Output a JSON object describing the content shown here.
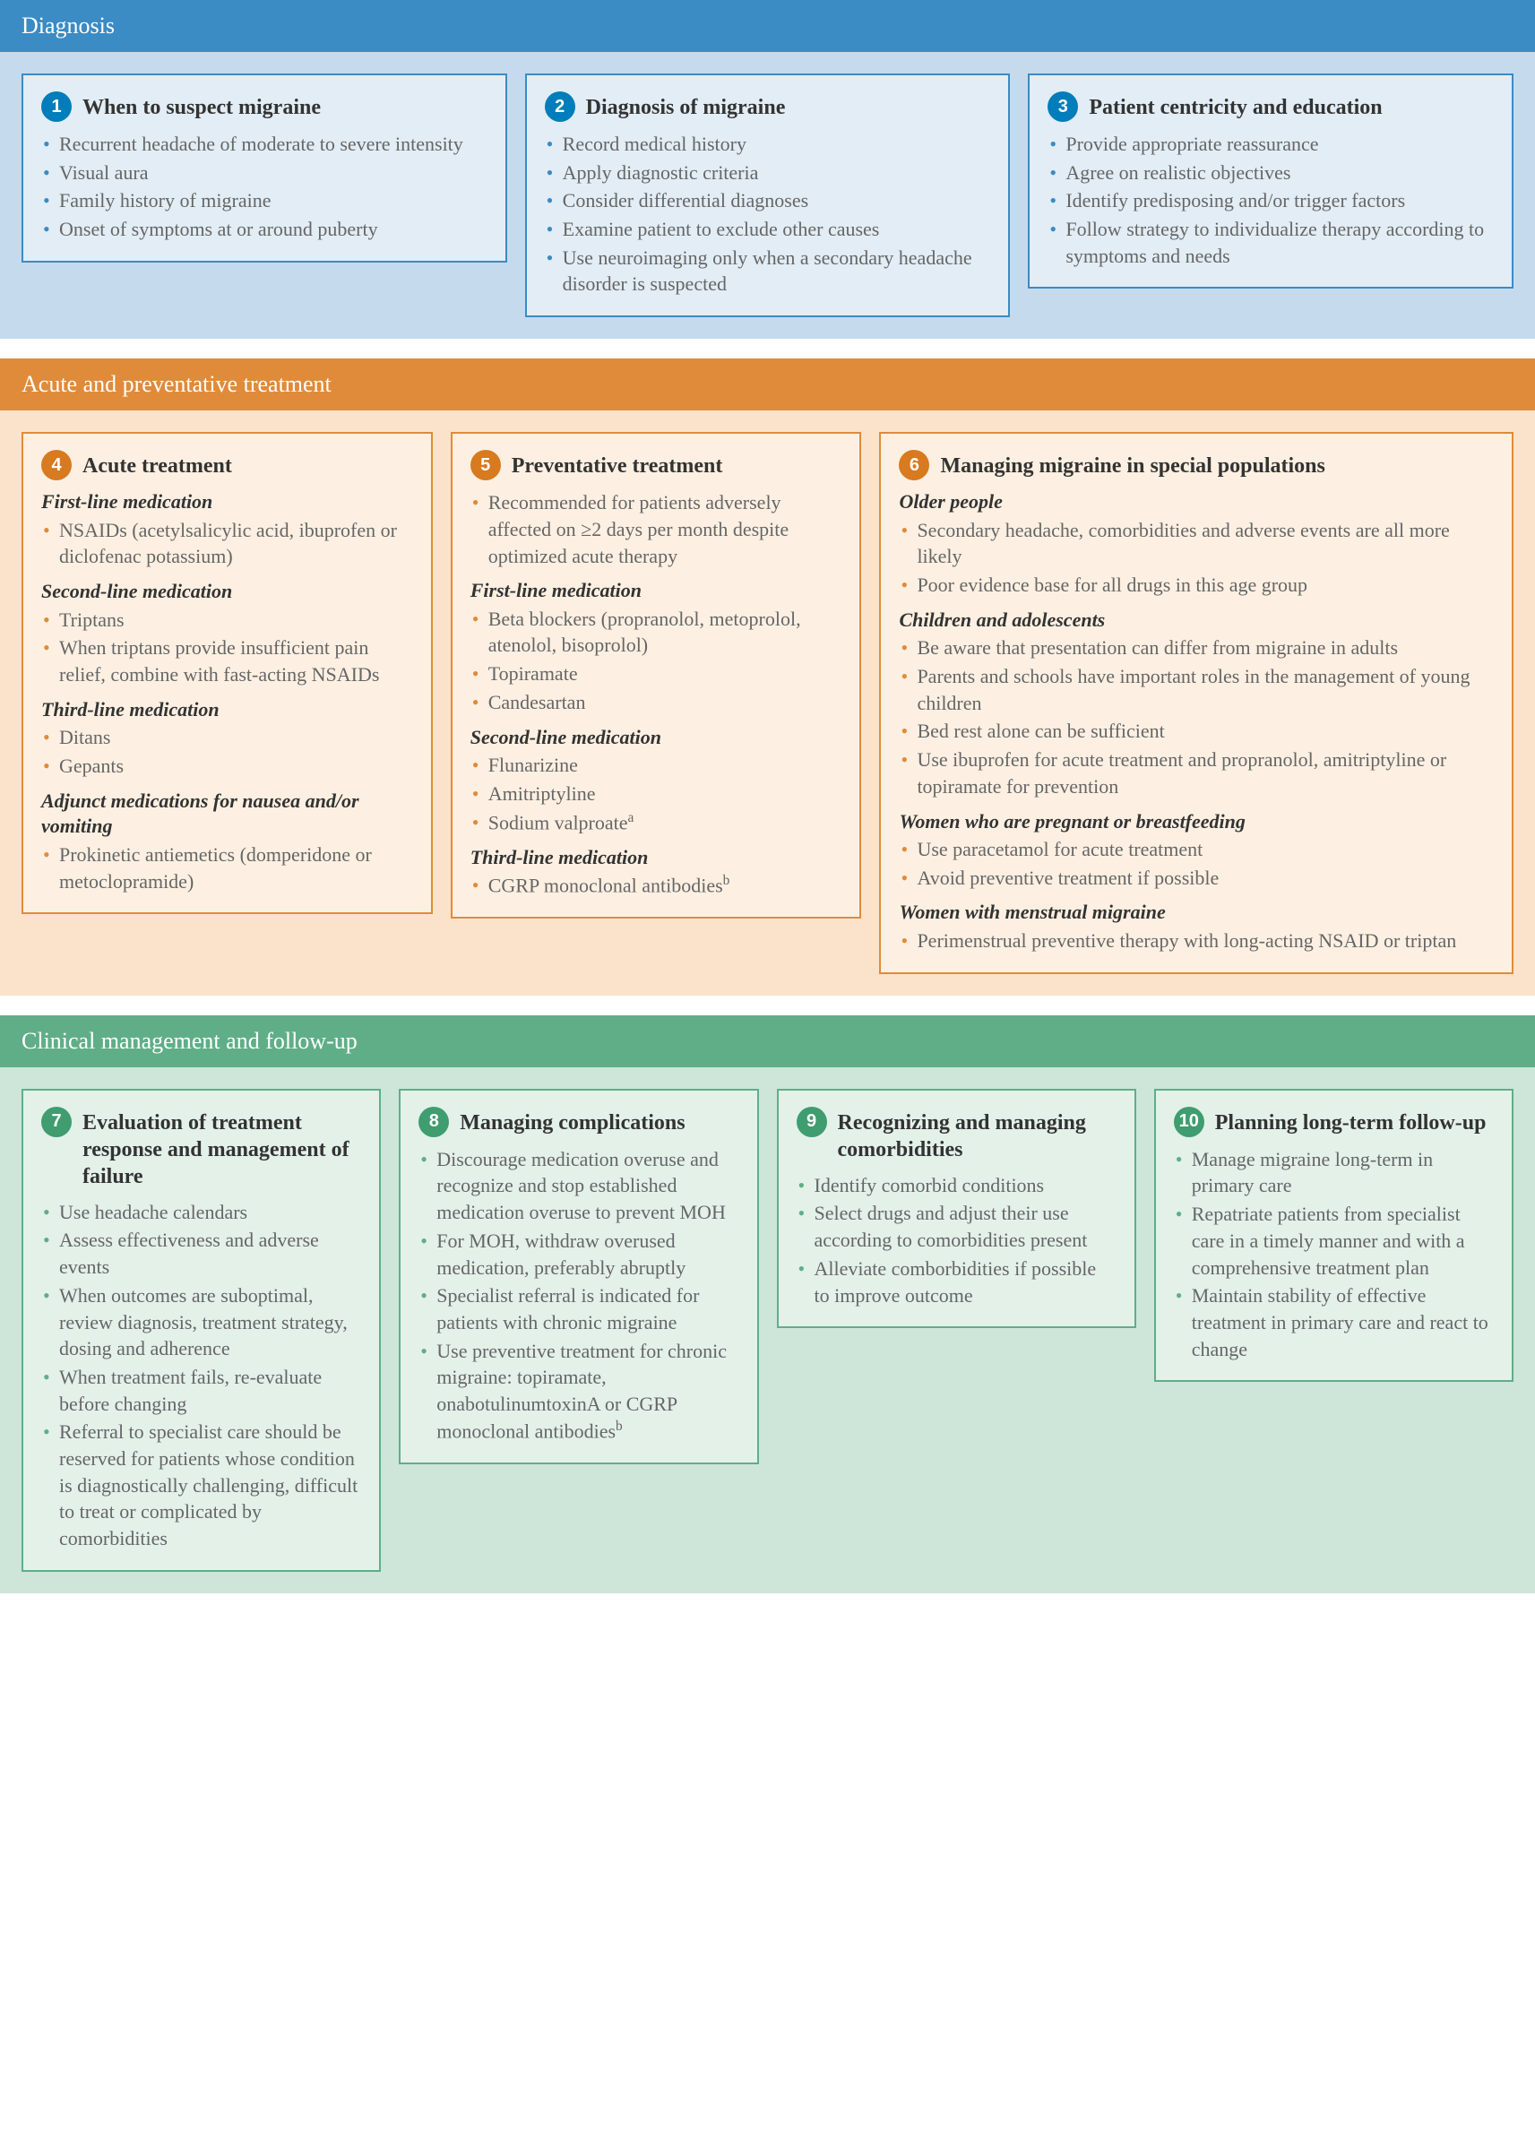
{
  "sections": [
    {
      "title": "Diagnosis",
      "header_bg": "#3b8bc4",
      "body_bg": "#c5dbed",
      "card_border": "#3b8bc4",
      "card_bg": "#e2edf5",
      "badge_bg": "#007dba",
      "bullet_color": "#3b8bc4",
      "cards": [
        {
          "num": "1",
          "title": "When to suspect migraine",
          "groups": [
            {
              "heading": null,
              "items": [
                "Recurrent headache of moderate to severe intensity",
                "Visual aura",
                "Family history of migraine",
                "Onset of symptoms at or around puberty"
              ]
            }
          ]
        },
        {
          "num": "2",
          "title": "Diagnosis of migraine",
          "groups": [
            {
              "heading": null,
              "items": [
                "Record medical history",
                "Apply diagnostic criteria",
                "Consider differential diagnoses",
                "Examine patient to exclude other causes",
                "Use neuroimaging only when a secondary headache disorder is suspected"
              ]
            }
          ]
        },
        {
          "num": "3",
          "title": "Patient centricity and education",
          "groups": [
            {
              "heading": null,
              "items": [
                "Provide appropriate reassurance",
                "Agree on realistic objectives",
                "Identify predisposing and/or trigger factors",
                "Follow strategy to individualize therapy according to symptoms and needs"
              ]
            }
          ]
        }
      ]
    },
    {
      "title": "Acute and preventative treatment",
      "header_bg": "#e08b3a",
      "body_bg": "#fbe3cb",
      "card_border": "#e08b3a",
      "card_bg": "#fdf0e2",
      "badge_bg": "#d87a1f",
      "bullet_color": "#e08b3a",
      "cards": [
        {
          "num": "4",
          "title": "Acute treatment",
          "groups": [
            {
              "heading": "First-line medication",
              "items": [
                "NSAIDs (acetylsalicylic acid, ibuprofen or diclofenac potassium)"
              ]
            },
            {
              "heading": "Second-line medication",
              "items": [
                "Triptans",
                "When triptans provide insufficient pain relief, combine with fast-acting NSAIDs"
              ]
            },
            {
              "heading": "Third-line medication",
              "items": [
                "Ditans",
                "Gepants"
              ]
            },
            {
              "heading": "Adjunct medications for nausea and/or vomiting",
              "items": [
                "Prokinetic antiemetics (domperidone or metoclopramide)"
              ]
            }
          ]
        },
        {
          "num": "5",
          "title": "Preventative treatment",
          "groups": [
            {
              "heading": null,
              "items": [
                "Recommended for patients adversely affected on ≥2 days per month despite optimized acute therapy"
              ]
            },
            {
              "heading": "First-line medication",
              "items": [
                "Beta blockers (propranolol, metoprolol, atenolol, bisoprolol)",
                "Topiramate",
                "Candesartan"
              ]
            },
            {
              "heading": "Second-line medication",
              "items": [
                "Flunarizine",
                "Amitriptyline",
                "Sodium valproate<span class=\"sup\">a</span>"
              ]
            },
            {
              "heading": "Third-line medication",
              "items": [
                "CGRP monoclonal antibodies<span class=\"sup\">b</span>"
              ]
            }
          ]
        },
        {
          "num": "6",
          "title": "Managing migraine in special populations",
          "wide": true,
          "groups": [
            {
              "heading": "Older people",
              "items": [
                "Secondary headache, comorbidities and adverse events are all more likely",
                "Poor evidence base for all drugs in this age group"
              ]
            },
            {
              "heading": "Children and adolescents",
              "items": [
                "Be aware that presentation can differ from migraine in adults",
                "Parents and schools have important roles in the management of young children",
                "Bed rest alone can be sufficient",
                "Use ibuprofen for acute treatment and propranolol, amitriptyline or topiramate for prevention"
              ]
            },
            {
              "heading": "Women who are pregnant or breastfeeding",
              "items": [
                "Use paracetamol for acute treatment",
                "Avoid preventive treatment if possible"
              ]
            },
            {
              "heading": "Women with menstrual migraine",
              "items": [
                "Perimenstrual preventive therapy with long-acting NSAID or triptan"
              ]
            }
          ]
        }
      ]
    },
    {
      "title": "Clinical management and follow-up",
      "header_bg": "#5fae88",
      "body_bg": "#cde6d9",
      "card_border": "#5fae88",
      "card_bg": "#e3f1e9",
      "badge_bg": "#3f9d6f",
      "bullet_color": "#5fae88",
      "cards": [
        {
          "num": "7",
          "title": "Evaluation of treatment response and management of failure",
          "groups": [
            {
              "heading": null,
              "items": [
                "Use headache calendars",
                "Assess effectiveness and adverse events",
                "When outcomes are suboptimal, review diagnosis, treatment strategy, dosing and adherence",
                "When treatment fails, re-evaluate before changing",
                "Referral to specialist care should be reserved for patients whose condition is diagnostically challenging, difficult to treat or complicated by comorbidities"
              ]
            }
          ]
        },
        {
          "num": "8",
          "title": "Managing complications",
          "groups": [
            {
              "heading": null,
              "items": [
                "Discourage medication overuse and recognize and stop established medication overuse to prevent MOH",
                "For MOH, withdraw overused medication, preferably abruptly",
                "Specialist referral is indicated for patients with chronic migraine",
                "Use preventive treatment for chronic migraine: topiramate, onabotulinumtoxinA or CGRP monoclonal antibodies<span class=\"sup\">b</span>"
              ]
            }
          ]
        },
        {
          "num": "9",
          "title": "Recognizing and managing comorbidities",
          "groups": [
            {
              "heading": null,
              "items": [
                "Identify comorbid conditions",
                "Select drugs and adjust their use according to comorbidities present",
                "Alleviate comborbidities if possible to improve outcome"
              ]
            }
          ]
        },
        {
          "num": "10",
          "title": "Planning long-term follow-up",
          "groups": [
            {
              "heading": null,
              "items": [
                "Manage migraine long-term in primary care",
                "Repatriate patients from specialist care in a timely manner and with a comprehensive treatment plan",
                "Maintain stability of effective treatment in primary care and react to change"
              ]
            }
          ]
        }
      ]
    }
  ]
}
